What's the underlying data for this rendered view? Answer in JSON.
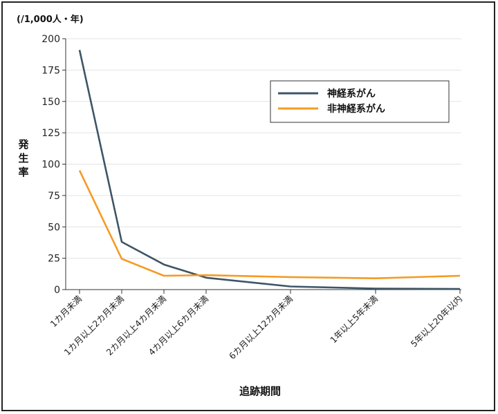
{
  "chart_data": {
    "type": "line",
    "unit_label": "(/1,000人・年)",
    "ylabel": "発生率",
    "xlabel": "追跡期間",
    "ylim": [
      0,
      200
    ],
    "yticks": [
      0,
      25,
      50,
      75,
      100,
      125,
      150,
      175,
      200
    ],
    "grid": true,
    "legend_position": "top-right",
    "categories": [
      "1カ月未満",
      "1カ月以上2カ月未満",
      "2カ月以上4カ月未満",
      "4カ月以上6カ月未満",
      "6カ月以上12カ月未満",
      "1年以上5年未満",
      "5年以上20年以内"
    ],
    "series": [
      {
        "name": "神経系がん",
        "color": "#3d5566",
        "values": [
          191,
          38,
          20,
          9.5,
          2.5,
          0.8,
          0.5
        ]
      },
      {
        "name": "非神経系がん",
        "color": "#f59a23",
        "values": [
          95,
          24.5,
          11,
          11.5,
          10,
          9,
          11
        ]
      }
    ]
  }
}
